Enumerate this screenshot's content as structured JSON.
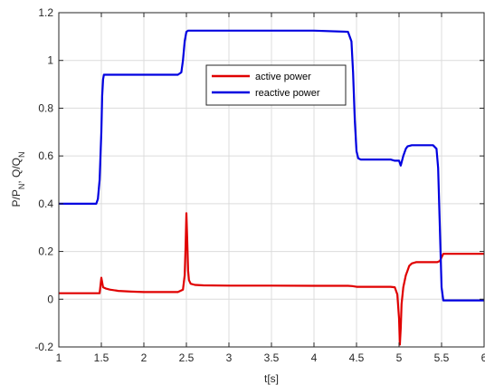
{
  "chart_data": {
    "type": "line",
    "xlabel": "t[s]",
    "ylabel": "P/P_N, Q/Q_N",
    "xlim": [
      1,
      6
    ],
    "ylim": [
      -0.2,
      1.2
    ],
    "xticks": [
      1,
      1.5,
      2,
      2.5,
      3,
      3.5,
      4,
      4.5,
      5,
      5.5,
      6
    ],
    "yticks": [
      -0.2,
      0,
      0.2,
      0.4,
      0.6,
      0.8,
      1,
      1.2
    ],
    "xtick_labels": [
      "1",
      "1.5",
      "2",
      "2.5",
      "3",
      "3.5",
      "4",
      "4.5",
      "5",
      "5.5",
      "6"
    ],
    "ytick_labels": [
      "-0.2",
      "0",
      "0.2",
      "0.4",
      "0.6",
      "0.8",
      "1",
      "1.2"
    ],
    "grid": true,
    "legend_position": "upper-center",
    "series": [
      {
        "name": "active power",
        "color": "#e00000",
        "x": [
          1,
          1.48,
          1.5,
          1.52,
          1.55,
          1.6,
          1.7,
          1.85,
          2.0,
          2.2,
          2.4,
          2.46,
          2.48,
          2.49,
          2.5,
          2.51,
          2.52,
          2.53,
          2.55,
          2.6,
          2.7,
          3.0,
          3.5,
          4.0,
          4.4,
          4.45,
          4.5,
          4.9,
          4.95,
          4.98,
          5.0,
          5.01,
          5.02,
          5.03,
          5.05,
          5.08,
          5.1,
          5.12,
          5.15,
          5.2,
          5.45,
          5.48,
          5.5,
          5.52,
          5.55,
          5.7,
          6.0
        ],
        "y": [
          0.025,
          0.025,
          0.09,
          0.05,
          0.045,
          0.04,
          0.035,
          0.032,
          0.03,
          0.03,
          0.03,
          0.04,
          0.1,
          0.22,
          0.36,
          0.25,
          0.12,
          0.08,
          0.065,
          0.06,
          0.058,
          0.057,
          0.057,
          0.056,
          0.056,
          0.055,
          0.052,
          0.052,
          0.05,
          0.02,
          -0.08,
          -0.19,
          -0.12,
          -0.02,
          0.05,
          0.1,
          0.12,
          0.14,
          0.15,
          0.155,
          0.155,
          0.16,
          0.175,
          0.19,
          0.19,
          0.19,
          0.19
        ]
      },
      {
        "name": "reactive power",
        "color": "#0000e0",
        "x": [
          1,
          1.44,
          1.46,
          1.48,
          1.5,
          1.51,
          1.52,
          1.53,
          1.55,
          1.6,
          1.8,
          2.0,
          2.2,
          2.4,
          2.44,
          2.46,
          2.48,
          2.5,
          2.52,
          2.55,
          3.0,
          3.5,
          4.0,
          4.4,
          4.44,
          4.46,
          4.48,
          4.5,
          4.52,
          4.55,
          4.6,
          4.9,
          4.95,
          5.0,
          5.02,
          5.05,
          5.08,
          5.1,
          5.15,
          5.4,
          5.44,
          5.46,
          5.48,
          5.5,
          5.52,
          5.55,
          6.0
        ],
        "y": [
          0.4,
          0.4,
          0.42,
          0.5,
          0.7,
          0.85,
          0.92,
          0.94,
          0.94,
          0.94,
          0.94,
          0.94,
          0.94,
          0.94,
          0.95,
          1.0,
          1.08,
          1.12,
          1.125,
          1.125,
          1.125,
          1.125,
          1.125,
          1.12,
          1.08,
          0.95,
          0.75,
          0.62,
          0.59,
          0.585,
          0.585,
          0.585,
          0.58,
          0.58,
          0.56,
          0.6,
          0.63,
          0.64,
          0.645,
          0.645,
          0.63,
          0.55,
          0.3,
          0.05,
          -0.005,
          -0.005,
          -0.005
        ]
      }
    ]
  }
}
